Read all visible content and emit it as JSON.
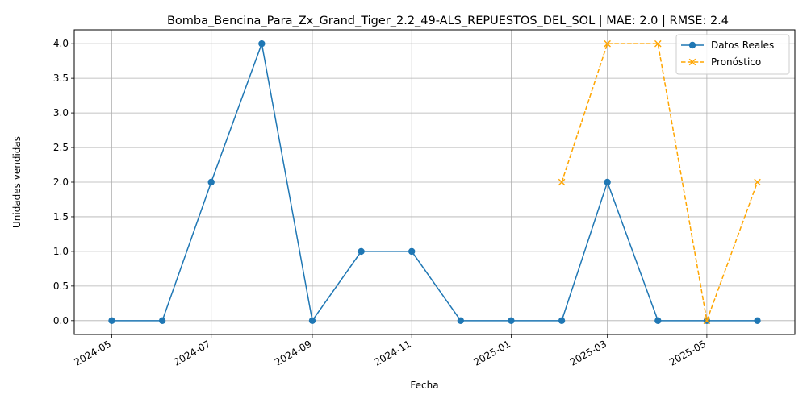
{
  "chart_data": {
    "type": "line",
    "title": "Bomba_Bencina_Para_Zx_Grand_Tiger_2.2_49-ALS_REPUESTOS_DEL_SOL | MAE: 2.0 | RMSE: 2.4",
    "xlabel": "Fecha",
    "ylabel": "Unidades vendidas",
    "x_ticks": [
      "2024-05",
      "2024-07",
      "2024-09",
      "2024-11",
      "2025-01",
      "2025-03",
      "2025-05"
    ],
    "y_ticks": [
      "0.0",
      "0.5",
      "1.0",
      "1.5",
      "2.0",
      "2.5",
      "3.0",
      "3.5",
      "4.0"
    ],
    "ylim": [
      -0.2,
      4.2
    ],
    "xlim": [
      "2024-04-08",
      "2025-06-24"
    ],
    "grid": true,
    "legend_position": "top-right",
    "series": [
      {
        "name": "Datos Reales",
        "color": "#1f77b4",
        "marker": "circle",
        "linestyle": "solid",
        "x": [
          "2024-05-01",
          "2024-06-01",
          "2024-07-01",
          "2024-08-01",
          "2024-09-01",
          "2024-10-01",
          "2024-11-01",
          "2024-12-01",
          "2025-01-01",
          "2025-02-01",
          "2025-03-01",
          "2025-04-01",
          "2025-05-01",
          "2025-06-01"
        ],
        "values": [
          0,
          0,
          2,
          4,
          0,
          1,
          1,
          0,
          0,
          0,
          2,
          0,
          0,
          0
        ]
      },
      {
        "name": "Pronóstico",
        "color": "#ffa500",
        "marker": "x",
        "linestyle": "dashed",
        "x": [
          "2025-02-01",
          "2025-03-01",
          "2025-04-01",
          "2025-05-01",
          "2025-06-01"
        ],
        "values": [
          2,
          4,
          4,
          0,
          2
        ]
      }
    ]
  }
}
